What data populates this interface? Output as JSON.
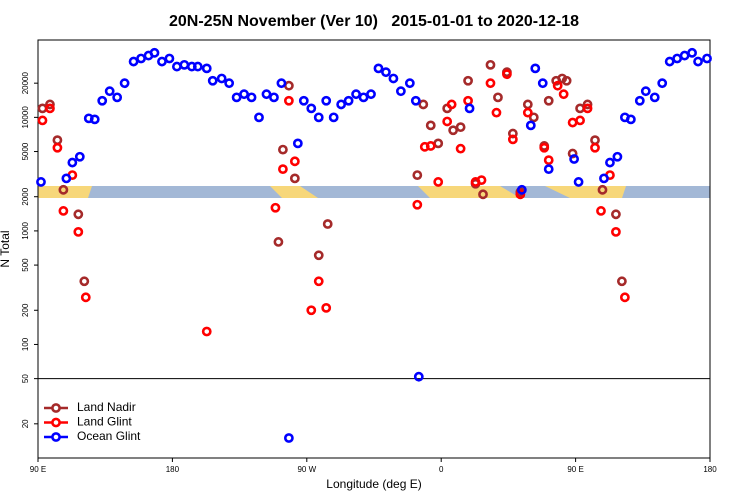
{
  "chart_data": {
    "type": "scatter",
    "title": "20N-25N November (Ver 10)   2015-01-01 to 2020-12-18",
    "xlabel": "Longitude (deg E)",
    "ylabel": "N Total",
    "xlim": [
      90,
      540
    ],
    "xticks": [
      {
        "value": 90,
        "label": "90 E"
      },
      {
        "value": 180,
        "label": "180"
      },
      {
        "value": 270,
        "label": "90 W"
      },
      {
        "value": 360,
        "label": "0"
      },
      {
        "value": 450,
        "label": "90 E"
      },
      {
        "value": 540,
        "label": "180"
      }
    ],
    "ylim": [
      10,
      48000
    ],
    "ylog": true,
    "yticks": [
      20,
      50,
      100,
      200,
      500,
      1000,
      2000,
      5000,
      10000,
      20000
    ],
    "hline": 50,
    "legend": "lower left",
    "series": [
      {
        "name": "Land Nadir",
        "color": "#a52a2a",
        "x": [
          93,
          98,
          103,
          107,
          117,
          121,
          251,
          254,
          258,
          262,
          278,
          284,
          344,
          348,
          353,
          358,
          364,
          368,
          373,
          378,
          383,
          388,
          393,
          398,
          404,
          408,
          413,
          418,
          422,
          429,
          432,
          437,
          441,
          444,
          448,
          453,
          458,
          463,
          468,
          477,
          481
        ],
        "values": [
          12000,
          13000,
          6300,
          2300,
          1400,
          360,
          800,
          5200,
          19000,
          2900,
          610,
          1150,
          3100,
          13000,
          8500,
          5900,
          12000,
          7700,
          8200,
          21000,
          2600,
          2100,
          29000,
          15000,
          25000,
          7200,
          2200,
          13000,
          10000,
          5600,
          14000,
          21000,
          22000,
          21000,
          4800,
          12000,
          13000,
          6300,
          2300,
          1400,
          360
        ]
      },
      {
        "name": "Land Glint",
        "color": "#ff0000",
        "x": [
          93,
          98,
          103,
          107,
          113,
          117,
          122,
          203,
          249,
          254,
          258,
          262,
          273,
          278,
          283,
          344,
          349,
          353,
          358,
          364,
          367,
          373,
          378,
          383,
          387,
          393,
          397,
          404,
          408,
          413,
          418,
          429,
          432,
          438,
          442,
          448,
          453,
          458,
          463,
          467,
          473,
          477,
          483
        ],
        "values": [
          9400,
          12000,
          5400,
          1500,
          3100,
          980,
          260,
          130,
          1600,
          3500,
          14000,
          4100,
          200,
          360,
          210,
          1700,
          5500,
          5600,
          2700,
          9200,
          13000,
          5300,
          14000,
          2700,
          2800,
          20000,
          11000,
          24000,
          6400,
          2100,
          11000,
          5400,
          4200,
          19000,
          16000,
          9000,
          9400,
          12000,
          5400,
          1500,
          3100,
          980,
          260
        ]
      },
      {
        "name": "Ocean Glint",
        "color": "#0000ff",
        "x": [
          92,
          109,
          113,
          118,
          124,
          128,
          133,
          138,
          143,
          148,
          154,
          159,
          164,
          168,
          173,
          178,
          183,
          188,
          193,
          197,
          203,
          207,
          213,
          218,
          223,
          228,
          233,
          238,
          243,
          248,
          253,
          258,
          264,
          268,
          273,
          278,
          283,
          288,
          293,
          298,
          303,
          308,
          313,
          318,
          323,
          328,
          333,
          339,
          343,
          345,
          379,
          414,
          420,
          423,
          428,
          432,
          449,
          452,
          469,
          473,
          478,
          483,
          487,
          493,
          497,
          503,
          508,
          513,
          518,
          523,
          528,
          532,
          538
        ],
        "values": [
          2700,
          2900,
          4000,
          4500,
          9800,
          9600,
          14000,
          17000,
          15000,
          20000,
          31000,
          33000,
          35000,
          37000,
          31000,
          33000,
          28000,
          29000,
          28000,
          28000,
          27000,
          21000,
          22000,
          20000,
          15000,
          16000,
          15000,
          10000,
          16000,
          15000,
          20000,
          15,
          5900,
          14000,
          12000,
          10000,
          14000,
          10000,
          13000,
          14000,
          16000,
          15000,
          16000,
          27000,
          25000,
          22000,
          17000,
          20000,
          14000,
          52,
          12000,
          2300,
          8500,
          27000,
          20000,
          3500,
          4300,
          2700,
          2900,
          4000,
          4500,
          10000,
          9600,
          14000,
          17000,
          15000,
          20000,
          31000,
          33000,
          35000,
          37000,
          31000,
          33000
        ]
      }
    ]
  }
}
